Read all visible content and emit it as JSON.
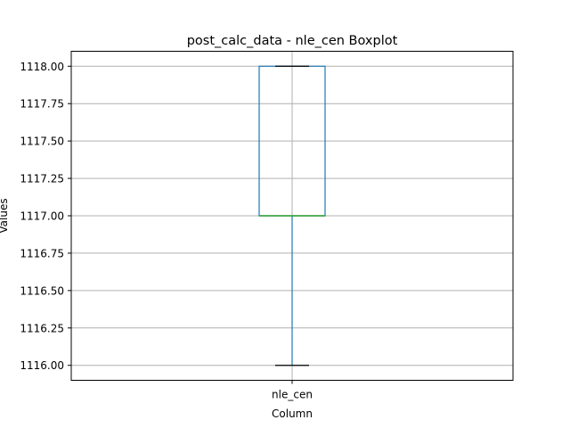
{
  "chart_data": {
    "type": "boxplot",
    "title": "post_calc_data - nle_cen Boxplot",
    "xlabel": "Column",
    "ylabel": "Values",
    "categories": [
      "nle_cen"
    ],
    "boxes": [
      {
        "category": "nle_cen",
        "whisker_low": 1116.0,
        "q1": 1117.0,
        "median": 1117.0,
        "q3": 1118.0,
        "whisker_high": 1118.0
      }
    ],
    "ylim": [
      1115.9,
      1118.1
    ],
    "yticks": [
      1116.0,
      1116.25,
      1116.5,
      1116.75,
      1117.0,
      1117.25,
      1117.5,
      1117.75,
      1118.0
    ],
    "ytick_labels": [
      "1116.00",
      "1116.25",
      "1116.50",
      "1116.75",
      "1117.00",
      "1117.25",
      "1117.50",
      "1117.75",
      "1118.00"
    ],
    "grid": true,
    "colors": {
      "box": "#1f77b4",
      "median": "#2ca02c",
      "caps": "#000000",
      "grid": "#b0b0b0"
    }
  }
}
